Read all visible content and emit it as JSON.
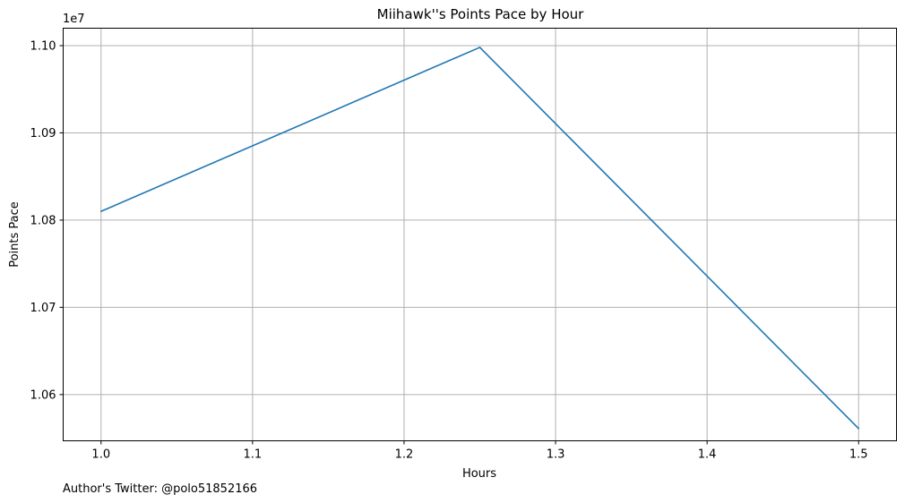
{
  "chart_data": {
    "type": "line",
    "title": "Miihawk''s Points Pace by Hour",
    "xlabel": "Hours",
    "ylabel": "Points Pace",
    "y_offset_label": "1e7",
    "x_ticks": [
      "1.0",
      "1.1",
      "1.2",
      "1.3",
      "1.4",
      "1.5"
    ],
    "y_ticks": [
      "1.06",
      "1.07",
      "1.08",
      "1.09",
      "1.10"
    ],
    "xlim": [
      0.975,
      1.525
    ],
    "ylim": [
      10547000,
      11020000
    ],
    "grid": true,
    "series": [
      {
        "color": "#1f77b4",
        "x": [
          1.0,
          1.25,
          1.5
        ],
        "y": [
          10810000,
          10998000,
          10561000
        ]
      }
    ]
  },
  "footer": {
    "note": "Author's Twitter: @polo51852166"
  }
}
